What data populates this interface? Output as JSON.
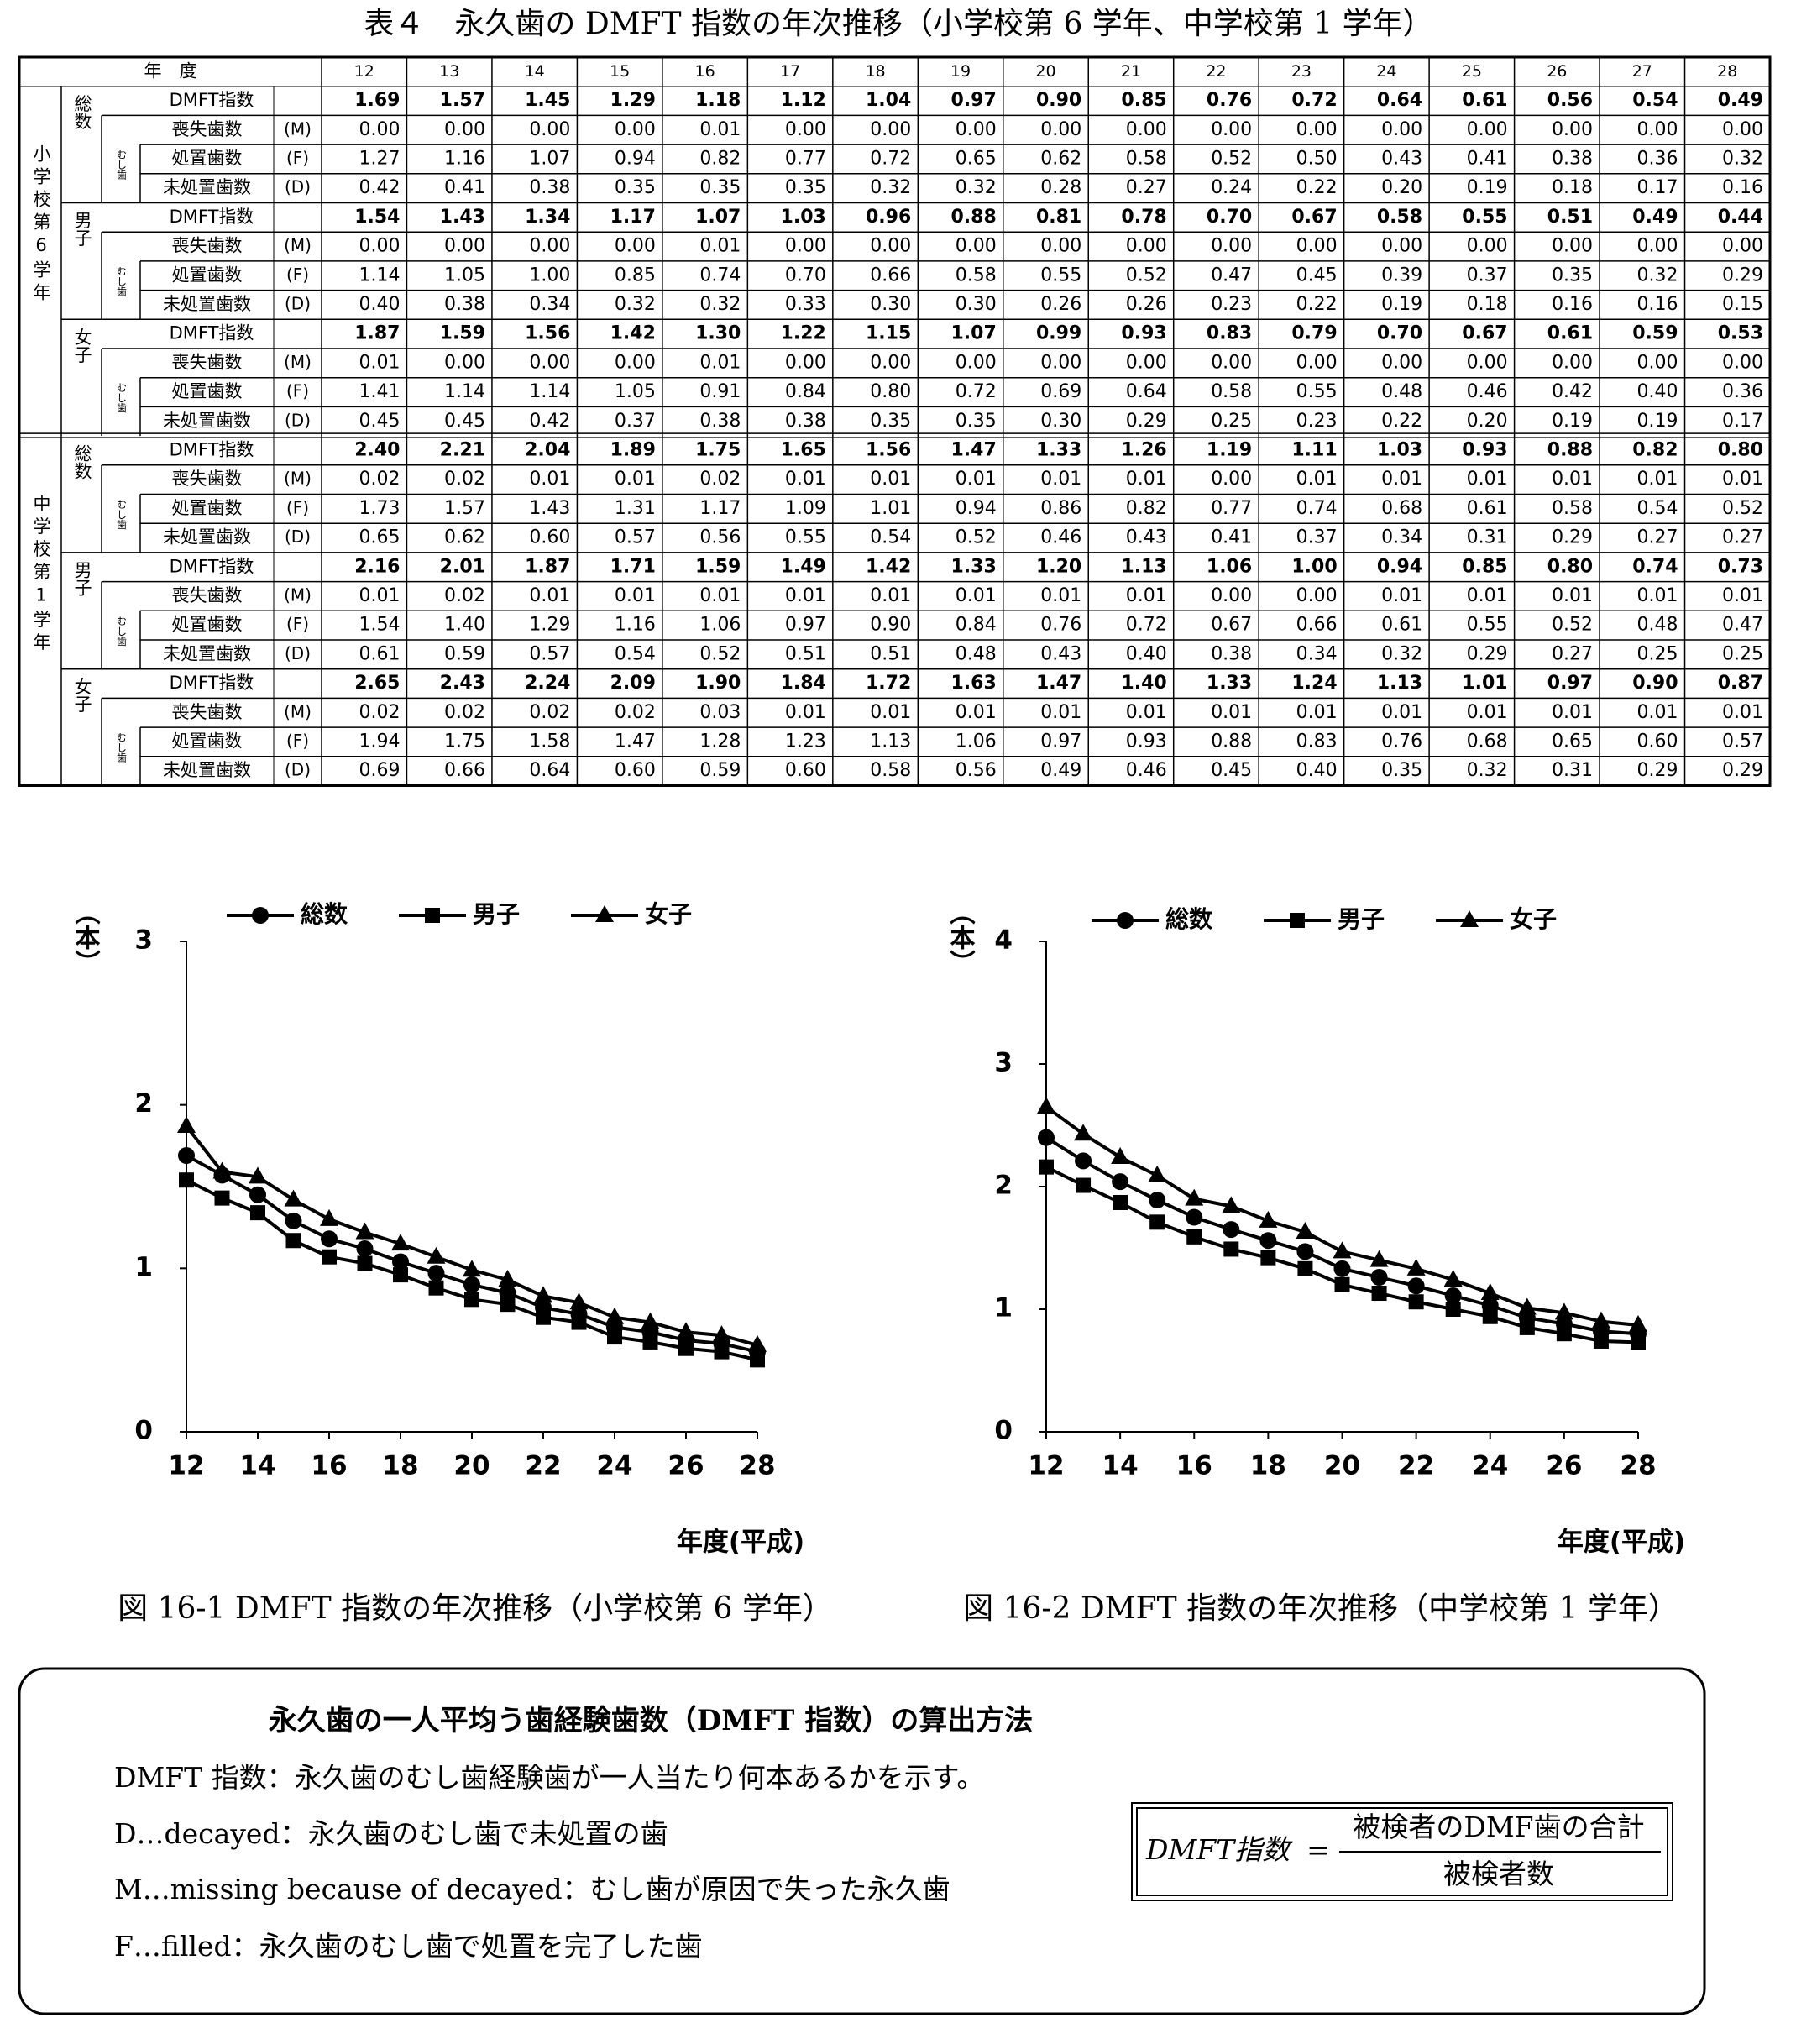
{
  "table": {
    "title": "表４　永久歯の DMFT 指数の年次推移（小学校第 6 学年、中学校第 1 学年）",
    "year_header": "年　度",
    "years": [
      "12",
      "13",
      "14",
      "15",
      "16",
      "17",
      "18",
      "19",
      "20",
      "21",
      "22",
      "23",
      "24",
      "25",
      "26",
      "27",
      "28"
    ],
    "schools": [
      {
        "name": "小学校第6学年",
        "sexes": [
          {
            "name": "総数",
            "caries_label": "むし歯",
            "rows": [
              {
                "label": "DMFT指数",
                "values": [
                  "1.69",
                  "1.57",
                  "1.45",
                  "1.29",
                  "1.18",
                  "1.12",
                  "1.04",
                  "0.97",
                  "0.90",
                  "0.85",
                  "0.76",
                  "0.72",
                  "0.64",
                  "0.61",
                  "0.56",
                  "0.54",
                  "0.49"
                ]
              },
              {
                "label": "喪失歯数",
                "code": "(M)",
                "values": [
                  "0.00",
                  "0.00",
                  "0.00",
                  "0.00",
                  "0.01",
                  "0.00",
                  "0.00",
                  "0.00",
                  "0.00",
                  "0.00",
                  "0.00",
                  "0.00",
                  "0.00",
                  "0.00",
                  "0.00",
                  "0.00",
                  "0.00"
                ]
              },
              {
                "label": "処置歯数",
                "code": "(F)",
                "values": [
                  "1.27",
                  "1.16",
                  "1.07",
                  "0.94",
                  "0.82",
                  "0.77",
                  "0.72",
                  "0.65",
                  "0.62",
                  "0.58",
                  "0.52",
                  "0.50",
                  "0.43",
                  "0.41",
                  "0.38",
                  "0.36",
                  "0.32"
                ]
              },
              {
                "label": "未処置歯数",
                "code": "(D)",
                "values": [
                  "0.42",
                  "0.41",
                  "0.38",
                  "0.35",
                  "0.35",
                  "0.35",
                  "0.32",
                  "0.32",
                  "0.28",
                  "0.27",
                  "0.24",
                  "0.22",
                  "0.20",
                  "0.19",
                  "0.18",
                  "0.17",
                  "0.16"
                ]
              }
            ]
          },
          {
            "name": "男子",
            "caries_label": "むし歯",
            "rows": [
              {
                "label": "DMFT指数",
                "values": [
                  "1.54",
                  "1.43",
                  "1.34",
                  "1.17",
                  "1.07",
                  "1.03",
                  "0.96",
                  "0.88",
                  "0.81",
                  "0.78",
                  "0.70",
                  "0.67",
                  "0.58",
                  "0.55",
                  "0.51",
                  "0.49",
                  "0.44"
                ]
              },
              {
                "label": "喪失歯数",
                "code": "(M)",
                "values": [
                  "0.00",
                  "0.00",
                  "0.00",
                  "0.00",
                  "0.01",
                  "0.00",
                  "0.00",
                  "0.00",
                  "0.00",
                  "0.00",
                  "0.00",
                  "0.00",
                  "0.00",
                  "0.00",
                  "0.00",
                  "0.00",
                  "0.00"
                ]
              },
              {
                "label": "処置歯数",
                "code": "(F)",
                "values": [
                  "1.14",
                  "1.05",
                  "1.00",
                  "0.85",
                  "0.74",
                  "0.70",
                  "0.66",
                  "0.58",
                  "0.55",
                  "0.52",
                  "0.47",
                  "0.45",
                  "0.39",
                  "0.37",
                  "0.35",
                  "0.32",
                  "0.29"
                ]
              },
              {
                "label": "未処置歯数",
                "code": "(D)",
                "values": [
                  "0.40",
                  "0.38",
                  "0.34",
                  "0.32",
                  "0.32",
                  "0.33",
                  "0.30",
                  "0.30",
                  "0.26",
                  "0.26",
                  "0.23",
                  "0.22",
                  "0.19",
                  "0.18",
                  "0.16",
                  "0.16",
                  "0.15"
                ]
              }
            ]
          },
          {
            "name": "女子",
            "caries_label": "むし歯",
            "rows": [
              {
                "label": "DMFT指数",
                "values": [
                  "1.87",
                  "1.59",
                  "1.56",
                  "1.42",
                  "1.30",
                  "1.22",
                  "1.15",
                  "1.07",
                  "0.99",
                  "0.93",
                  "0.83",
                  "0.79",
                  "0.70",
                  "0.67",
                  "0.61",
                  "0.59",
                  "0.53"
                ]
              },
              {
                "label": "喪失歯数",
                "code": "(M)",
                "values": [
                  "0.01",
                  "0.00",
                  "0.00",
                  "0.00",
                  "0.01",
                  "0.00",
                  "0.00",
                  "0.00",
                  "0.00",
                  "0.00",
                  "0.00",
                  "0.00",
                  "0.00",
                  "0.00",
                  "0.00",
                  "0.00",
                  "0.00"
                ]
              },
              {
                "label": "処置歯数",
                "code": "(F)",
                "values": [
                  "1.41",
                  "1.14",
                  "1.14",
                  "1.05",
                  "0.91",
                  "0.84",
                  "0.80",
                  "0.72",
                  "0.69",
                  "0.64",
                  "0.58",
                  "0.55",
                  "0.48",
                  "0.46",
                  "0.42",
                  "0.40",
                  "0.36"
                ]
              },
              {
                "label": "未処置歯数",
                "code": "(D)",
                "values": [
                  "0.45",
                  "0.45",
                  "0.42",
                  "0.37",
                  "0.38",
                  "0.38",
                  "0.35",
                  "0.35",
                  "0.30",
                  "0.29",
                  "0.25",
                  "0.23",
                  "0.22",
                  "0.20",
                  "0.19",
                  "0.19",
                  "0.17"
                ]
              }
            ]
          }
        ]
      },
      {
        "name": "中学校第1学年",
        "sexes": [
          {
            "name": "総数",
            "caries_label": "むし歯",
            "rows": [
              {
                "label": "DMFT指数",
                "values": [
                  "2.40",
                  "2.21",
                  "2.04",
                  "1.89",
                  "1.75",
                  "1.65",
                  "1.56",
                  "1.47",
                  "1.33",
                  "1.26",
                  "1.19",
                  "1.11",
                  "1.03",
                  "0.93",
                  "0.88",
                  "0.82",
                  "0.80"
                ]
              },
              {
                "label": "喪失歯数",
                "code": "(M)",
                "values": [
                  "0.02",
                  "0.02",
                  "0.01",
                  "0.01",
                  "0.02",
                  "0.01",
                  "0.01",
                  "0.01",
                  "0.01",
                  "0.01",
                  "0.00",
                  "0.01",
                  "0.01",
                  "0.01",
                  "0.01",
                  "0.01",
                  "0.01"
                ]
              },
              {
                "label": "処置歯数",
                "code": "(F)",
                "values": [
                  "1.73",
                  "1.57",
                  "1.43",
                  "1.31",
                  "1.17",
                  "1.09",
                  "1.01",
                  "0.94",
                  "0.86",
                  "0.82",
                  "0.77",
                  "0.74",
                  "0.68",
                  "0.61",
                  "0.58",
                  "0.54",
                  "0.52"
                ]
              },
              {
                "label": "未処置歯数",
                "code": "(D)",
                "values": [
                  "0.65",
                  "0.62",
                  "0.60",
                  "0.57",
                  "0.56",
                  "0.55",
                  "0.54",
                  "0.52",
                  "0.46",
                  "0.43",
                  "0.41",
                  "0.37",
                  "0.34",
                  "0.31",
                  "0.29",
                  "0.27",
                  "0.27"
                ]
              }
            ]
          },
          {
            "name": "男子",
            "caries_label": "むし歯",
            "rows": [
              {
                "label": "DMFT指数",
                "values": [
                  "2.16",
                  "2.01",
                  "1.87",
                  "1.71",
                  "1.59",
                  "1.49",
                  "1.42",
                  "1.33",
                  "1.20",
                  "1.13",
                  "1.06",
                  "1.00",
                  "0.94",
                  "0.85",
                  "0.80",
                  "0.74",
                  "0.73"
                ]
              },
              {
                "label": "喪失歯数",
                "code": "(M)",
                "values": [
                  "0.01",
                  "0.02",
                  "0.01",
                  "0.01",
                  "0.01",
                  "0.01",
                  "0.01",
                  "0.01",
                  "0.01",
                  "0.01",
                  "0.00",
                  "0.00",
                  "0.01",
                  "0.01",
                  "0.01",
                  "0.01",
                  "0.01"
                ]
              },
              {
                "label": "処置歯数",
                "code": "(F)",
                "values": [
                  "1.54",
                  "1.40",
                  "1.29",
                  "1.16",
                  "1.06",
                  "0.97",
                  "0.90",
                  "0.84",
                  "0.76",
                  "0.72",
                  "0.67",
                  "0.66",
                  "0.61",
                  "0.55",
                  "0.52",
                  "0.48",
                  "0.47"
                ]
              },
              {
                "label": "未処置歯数",
                "code": "(D)",
                "values": [
                  "0.61",
                  "0.59",
                  "0.57",
                  "0.54",
                  "0.52",
                  "0.51",
                  "0.51",
                  "0.48",
                  "0.43",
                  "0.40",
                  "0.38",
                  "0.34",
                  "0.32",
                  "0.29",
                  "0.27",
                  "0.25",
                  "0.25"
                ]
              }
            ]
          },
          {
            "name": "女子",
            "caries_label": "むし歯",
            "rows": [
              {
                "label": "DMFT指数",
                "values": [
                  "2.65",
                  "2.43",
                  "2.24",
                  "2.09",
                  "1.90",
                  "1.84",
                  "1.72",
                  "1.63",
                  "1.47",
                  "1.40",
                  "1.33",
                  "1.24",
                  "1.13",
                  "1.01",
                  "0.97",
                  "0.90",
                  "0.87"
                ]
              },
              {
                "label": "喪失歯数",
                "code": "(M)",
                "values": [
                  "0.02",
                  "0.02",
                  "0.02",
                  "0.02",
                  "0.03",
                  "0.01",
                  "0.01",
                  "0.01",
                  "0.01",
                  "0.01",
                  "0.01",
                  "0.01",
                  "0.01",
                  "0.01",
                  "0.01",
                  "0.01",
                  "0.01"
                ]
              },
              {
                "label": "処置歯数",
                "code": "(F)",
                "values": [
                  "1.94",
                  "1.75",
                  "1.58",
                  "1.47",
                  "1.28",
                  "1.23",
                  "1.13",
                  "1.06",
                  "0.97",
                  "0.93",
                  "0.88",
                  "0.83",
                  "0.76",
                  "0.68",
                  "0.65",
                  "0.60",
                  "0.57"
                ]
              },
              {
                "label": "未処置歯数",
                "code": "(D)",
                "values": [
                  "0.69",
                  "0.66",
                  "0.64",
                  "0.60",
                  "0.59",
                  "0.60",
                  "0.58",
                  "0.56",
                  "0.49",
                  "0.46",
                  "0.45",
                  "0.40",
                  "0.35",
                  "0.32",
                  "0.31",
                  "0.29",
                  "0.29"
                ]
              }
            ]
          }
        ]
      }
    ]
  },
  "chart_data": [
    {
      "type": "line",
      "caption": "図 16-1 DMFT 指数の年次推移（小学校第 6 学年）",
      "ylabel": "（本）",
      "xlabel": "年度(平成)",
      "grid": false,
      "x": [
        12,
        13,
        14,
        15,
        16,
        17,
        18,
        19,
        20,
        21,
        22,
        23,
        24,
        25,
        26,
        27,
        28
      ],
      "xlim": [
        12,
        28
      ],
      "xticks": [
        12,
        14,
        16,
        18,
        20,
        22,
        24,
        26,
        28
      ],
      "ylim": [
        0,
        3
      ],
      "yticks": [
        0,
        1,
        2,
        3
      ],
      "series": [
        {
          "name": "総数",
          "color": "#000000",
          "marker": "circle",
          "values": [
            1.69,
            1.57,
            1.45,
            1.29,
            1.18,
            1.12,
            1.04,
            0.97,
            0.9,
            0.85,
            0.76,
            0.72,
            0.64,
            0.61,
            0.56,
            0.54,
            0.49
          ]
        },
        {
          "name": "男子",
          "color": "#000000",
          "marker": "square",
          "values": [
            1.54,
            1.43,
            1.34,
            1.17,
            1.07,
            1.03,
            0.96,
            0.88,
            0.81,
            0.78,
            0.7,
            0.67,
            0.58,
            0.55,
            0.51,
            0.49,
            0.44
          ]
        },
        {
          "name": "女子",
          "color": "#000000",
          "marker": "triangle",
          "values": [
            1.87,
            1.59,
            1.56,
            1.42,
            1.3,
            1.22,
            1.15,
            1.07,
            0.99,
            0.93,
            0.83,
            0.79,
            0.7,
            0.67,
            0.61,
            0.59,
            0.53
          ]
        }
      ]
    },
    {
      "type": "line",
      "caption": "図 16-2 DMFT 指数の年次推移（中学校第 1 学年）",
      "ylabel": "（本）",
      "xlabel": "年度(平成)",
      "grid": false,
      "x": [
        12,
        13,
        14,
        15,
        16,
        17,
        18,
        19,
        20,
        21,
        22,
        23,
        24,
        25,
        26,
        27,
        28
      ],
      "xlim": [
        12,
        28
      ],
      "xticks": [
        12,
        14,
        16,
        18,
        20,
        22,
        24,
        26,
        28
      ],
      "ylim": [
        0,
        4
      ],
      "yticks": [
        0,
        1,
        2,
        3,
        4
      ],
      "series": [
        {
          "name": "総数",
          "color": "#000000",
          "marker": "circle",
          "values": [
            2.4,
            2.21,
            2.04,
            1.89,
            1.75,
            1.65,
            1.56,
            1.47,
            1.33,
            1.26,
            1.19,
            1.11,
            1.03,
            0.93,
            0.88,
            0.82,
            0.8
          ]
        },
        {
          "name": "男子",
          "color": "#000000",
          "marker": "square",
          "values": [
            2.16,
            2.01,
            1.87,
            1.71,
            1.59,
            1.49,
            1.42,
            1.33,
            1.2,
            1.13,
            1.06,
            1.0,
            0.94,
            0.85,
            0.8,
            0.74,
            0.73
          ]
        },
        {
          "name": "女子",
          "color": "#000000",
          "marker": "triangle",
          "values": [
            2.65,
            2.43,
            2.24,
            2.09,
            1.9,
            1.84,
            1.72,
            1.63,
            1.47,
            1.4,
            1.33,
            1.24,
            1.13,
            1.01,
            0.97,
            0.9,
            0.87
          ]
        }
      ]
    }
  ],
  "notes": {
    "title": "永久歯の一人平均う歯経験歯数（DMFT 指数）の算出方法",
    "lines": [
      "DMFT 指数：永久歯のむし歯経験歯が一人当たり何本あるかを示す。",
      "D…decayed：永久歯のむし歯で未処置の歯",
      "M…missing because of decayed：むし歯が原因で失った永久歯",
      "F…filled：永久歯のむし歯で処置を完了した歯"
    ],
    "formula": {
      "lhs": "DMFT指数",
      "eq": "=",
      "numerator": "被検者のDMF歯の合計",
      "denominator": "被検者数"
    }
  }
}
